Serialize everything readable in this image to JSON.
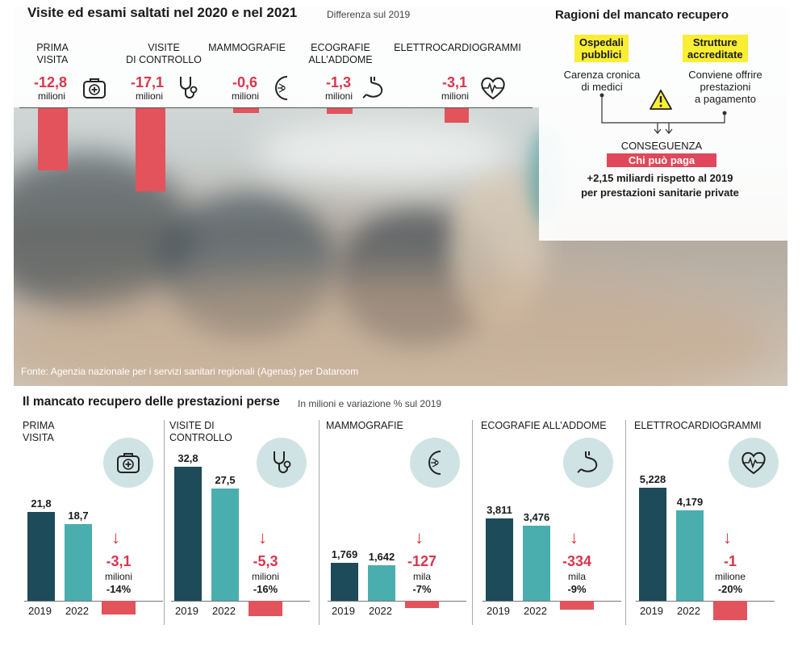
{
  "top": {
    "title": "Visite ed esami saltati nel 2020 e nel 2021",
    "subtitle": "Differenza sul 2019",
    "categories": [
      "PRIMA\nVISITA",
      "VISITE\nDI CONTROLLO",
      "MAMMOGRAFIE",
      "ECOGRAFIE\nALL’ADDOME",
      "ELETTROCARDIOGRAMMI"
    ],
    "values_text": [
      "-12,8",
      "-17,1",
      "-0,6",
      "-1,3",
      "-3,1"
    ],
    "unit": "milioni",
    "icons": [
      "medkit-icon",
      "stethoscope-icon",
      "breast-icon",
      "stomach-icon",
      "heart-ecg-icon"
    ],
    "source": "Fonte: Agenzia nazionale per i servizi sanitari regionali (Agenas) per Dataroom"
  },
  "reasons": {
    "title": "Ragioni del mancato recupero",
    "left_box": "Ospedali\npubblici",
    "left_text": "Carenza cronica\ndi medici",
    "right_box": "Strutture\naccreditate",
    "right_text": "Conviene offrire\nprestazioni\na pagamento",
    "consequence_label": "CONSEGUENZA",
    "consequence_value": "Chi può paga",
    "line1": "+2,15 miliardi rispetto al 2019",
    "line2": "per prestazioni sanitarie private"
  },
  "bottom": {
    "title": "Il mancato recupero delle prestazioni perse",
    "subtitle": "In milioni e variazione % sul 2019",
    "year_labels": [
      "2019",
      "2022"
    ]
  },
  "colors": {
    "red": "#e2535c",
    "dark_teal": "#1d4b5a",
    "light_teal": "#4aaeae",
    "circle": "#cfe3e4"
  },
  "chart_data": [
    {
      "type": "bar",
      "title": "Visite ed esami saltati nel 2020 e nel 2021",
      "subtitle": "Differenza sul 2019",
      "categories": [
        "Prima visita",
        "Visite di controllo",
        "Mammografie",
        "Ecografie all’addome",
        "Elettrocardiogrammi"
      ],
      "values": [
        -12.8,
        -17.1,
        -0.6,
        -1.3,
        -3.1
      ],
      "unit": "milioni"
    },
    {
      "type": "bar",
      "title": "PRIMA VISITA",
      "categories": [
        "2019",
        "2022"
      ],
      "values": [
        21.8,
        18.7
      ],
      "value_labels": [
        "21,8",
        "18,7"
      ],
      "delta": "-3,1",
      "delta_unit": "milioni",
      "delta_pct": "-14%"
    },
    {
      "type": "bar",
      "title": "VISITE DI CONTROLLO",
      "categories": [
        "2019",
        "2022"
      ],
      "values": [
        32.8,
        27.5
      ],
      "value_labels": [
        "32,8",
        "27,5"
      ],
      "delta": "-5,3",
      "delta_unit": "milioni",
      "delta_pct": "-16%"
    },
    {
      "type": "bar",
      "title": "MAMMOGRAFIE",
      "categories": [
        "2019",
        "2022"
      ],
      "values": [
        1.769,
        1.642
      ],
      "value_labels": [
        "1,769",
        "1,642"
      ],
      "delta": "-127",
      "delta_unit": "mila",
      "delta_pct": "-7%"
    },
    {
      "type": "bar",
      "title": "ECOGRAFIE ALL’ADDOME",
      "categories": [
        "2019",
        "2022"
      ],
      "values": [
        3.811,
        3.476
      ],
      "value_labels": [
        "3,811",
        "3,476"
      ],
      "delta": "-334",
      "delta_unit": "mila",
      "delta_pct": "-9%"
    },
    {
      "type": "bar",
      "title": "ELETTROCARDIOGRAMMI",
      "categories": [
        "2019",
        "2022"
      ],
      "values": [
        5.228,
        4.179
      ],
      "value_labels": [
        "5,228",
        "4,179"
      ],
      "delta": "-1",
      "delta_unit": "milione",
      "delta_pct": "-20%"
    }
  ]
}
